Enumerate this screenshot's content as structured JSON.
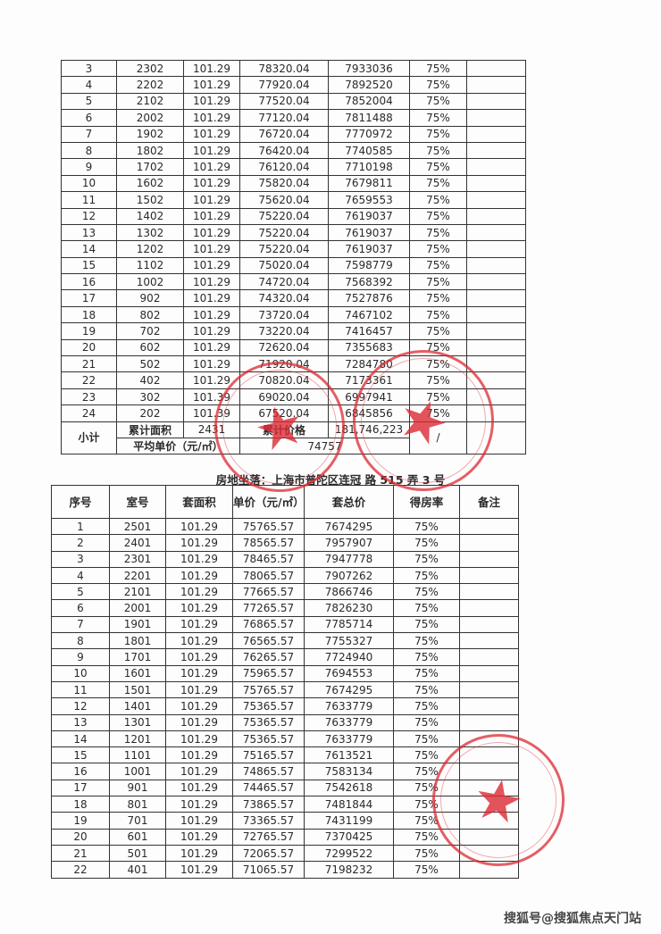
{
  "table1": {
    "rows": [
      [
        "3",
        "2302",
        "101.29",
        "78320.04",
        "7933036",
        "75%",
        ""
      ],
      [
        "4",
        "2202",
        "101.29",
        "77920.04",
        "7892520",
        "75%",
        ""
      ],
      [
        "5",
        "2102",
        "101.29",
        "77520.04",
        "7852004",
        "75%",
        ""
      ],
      [
        "6",
        "2002",
        "101.29",
        "77120.04",
        "7811488",
        "75%",
        ""
      ],
      [
        "7",
        "1902",
        "101.29",
        "76720.04",
        "7770972",
        "75%",
        ""
      ],
      [
        "8",
        "1802",
        "101.29",
        "76420.04",
        "7740585",
        "75%",
        ""
      ],
      [
        "9",
        "1702",
        "101.29",
        "76120.04",
        "7710198",
        "75%",
        ""
      ],
      [
        "10",
        "1602",
        "101.29",
        "75820.04",
        "7679811",
        "75%",
        ""
      ],
      [
        "11",
        "1502",
        "101.29",
        "75620.04",
        "7659553",
        "75%",
        ""
      ],
      [
        "12",
        "1402",
        "101.29",
        "75220.04",
        "7619037",
        "75%",
        ""
      ],
      [
        "13",
        "1302",
        "101.29",
        "75220.04",
        "7619037",
        "75%",
        ""
      ],
      [
        "14",
        "1202",
        "101.29",
        "75220.04",
        "7619037",
        "75%",
        ""
      ],
      [
        "15",
        "1102",
        "101.29",
        "75020.04",
        "7598779",
        "75%",
        ""
      ],
      [
        "16",
        "1002",
        "101.29",
        "74720.04",
        "7568392",
        "75%",
        ""
      ],
      [
        "17",
        "902",
        "101.29",
        "74320.04",
        "7527876",
        "75%",
        ""
      ],
      [
        "18",
        "802",
        "101.29",
        "73720.04",
        "7467102",
        "75%",
        ""
      ],
      [
        "19",
        "702",
        "101.29",
        "73220.04",
        "7416457",
        "75%",
        ""
      ],
      [
        "20",
        "602",
        "101.29",
        "72620.04",
        "7355683",
        "75%",
        ""
      ],
      [
        "21",
        "502",
        "101.29",
        "71920.04",
        "7284780",
        "75%",
        ""
      ],
      [
        "22",
        "402",
        "101.29",
        "70820.04",
        "7173361",
        "75%",
        ""
      ],
      [
        "23",
        "302",
        "101.39",
        "69020.04",
        "6997941",
        "75%",
        ""
      ],
      [
        "24",
        "202",
        "101.39",
        "67520.04",
        "6845856",
        "75%",
        ""
      ]
    ],
    "subtotal": {
      "label": "小计",
      "area_label": "累计面积",
      "area_value": "2431",
      "price_label": "累计价格",
      "price_value": "181,746,223",
      "slash": "/",
      "avg_label": "平均单价（元/㎡）",
      "avg_value": "74757"
    }
  },
  "table2": {
    "address_label": "房地坐落：",
    "address": "上海市普陀区连冠 路 515 弄 3 号",
    "headers": [
      "序号",
      "室号",
      "套面积",
      "单价（元/㎡）",
      "套总价",
      "得房率",
      "备注"
    ],
    "rows": [
      [
        "1",
        "2501",
        "101.29",
        "75765.57",
        "7674295",
        "75%",
        ""
      ],
      [
        "2",
        "2401",
        "101.29",
        "78565.57",
        "7957907",
        "75%",
        ""
      ],
      [
        "3",
        "2301",
        "101.29",
        "78465.57",
        "7947778",
        "75%",
        ""
      ],
      [
        "4",
        "2201",
        "101.29",
        "78065.57",
        "7907262",
        "75%",
        ""
      ],
      [
        "5",
        "2101",
        "101.29",
        "77665.57",
        "7866746",
        "75%",
        ""
      ],
      [
        "6",
        "2001",
        "101.29",
        "77265.57",
        "7826230",
        "75%",
        ""
      ],
      [
        "7",
        "1901",
        "101.29",
        "76865.57",
        "7785714",
        "75%",
        ""
      ],
      [
        "8",
        "1801",
        "101.29",
        "76565.57",
        "7755327",
        "75%",
        ""
      ],
      [
        "9",
        "1701",
        "101.29",
        "76265.57",
        "7724940",
        "75%",
        ""
      ],
      [
        "10",
        "1601",
        "101.29",
        "75965.57",
        "7694553",
        "75%",
        ""
      ],
      [
        "11",
        "1501",
        "101.29",
        "75765.57",
        "7674295",
        "75%",
        ""
      ],
      [
        "12",
        "1401",
        "101.29",
        "75365.57",
        "7633779",
        "75%",
        ""
      ],
      [
        "13",
        "1301",
        "101.29",
        "75365.57",
        "7633779",
        "75%",
        ""
      ],
      [
        "14",
        "1201",
        "101.29",
        "75365.57",
        "7633779",
        "75%",
        ""
      ],
      [
        "15",
        "1101",
        "101.29",
        "75165.57",
        "7613521",
        "75%",
        ""
      ],
      [
        "16",
        "1001",
        "101.29",
        "74865.57",
        "7583134",
        "75%",
        ""
      ],
      [
        "17",
        "901",
        "101.29",
        "74465.57",
        "7542618",
        "75%",
        ""
      ],
      [
        "18",
        "801",
        "101.29",
        "73865.57",
        "7481844",
        "75%",
        ""
      ],
      [
        "19",
        "701",
        "101.29",
        "73365.57",
        "7431199",
        "75%",
        ""
      ],
      [
        "20",
        "601",
        "101.29",
        "72765.57",
        "7370425",
        "75%",
        ""
      ],
      [
        "21",
        "501",
        "101.29",
        "72065.57",
        "7299522",
        "75%",
        ""
      ],
      [
        "22",
        "401",
        "101.29",
        "71065.57",
        "7198232",
        "75%",
        ""
      ]
    ]
  },
  "stamps": {
    "color": "#dc2832",
    "icon": "star-icon"
  },
  "watermark": "搜狐号@搜狐焦点天门站"
}
